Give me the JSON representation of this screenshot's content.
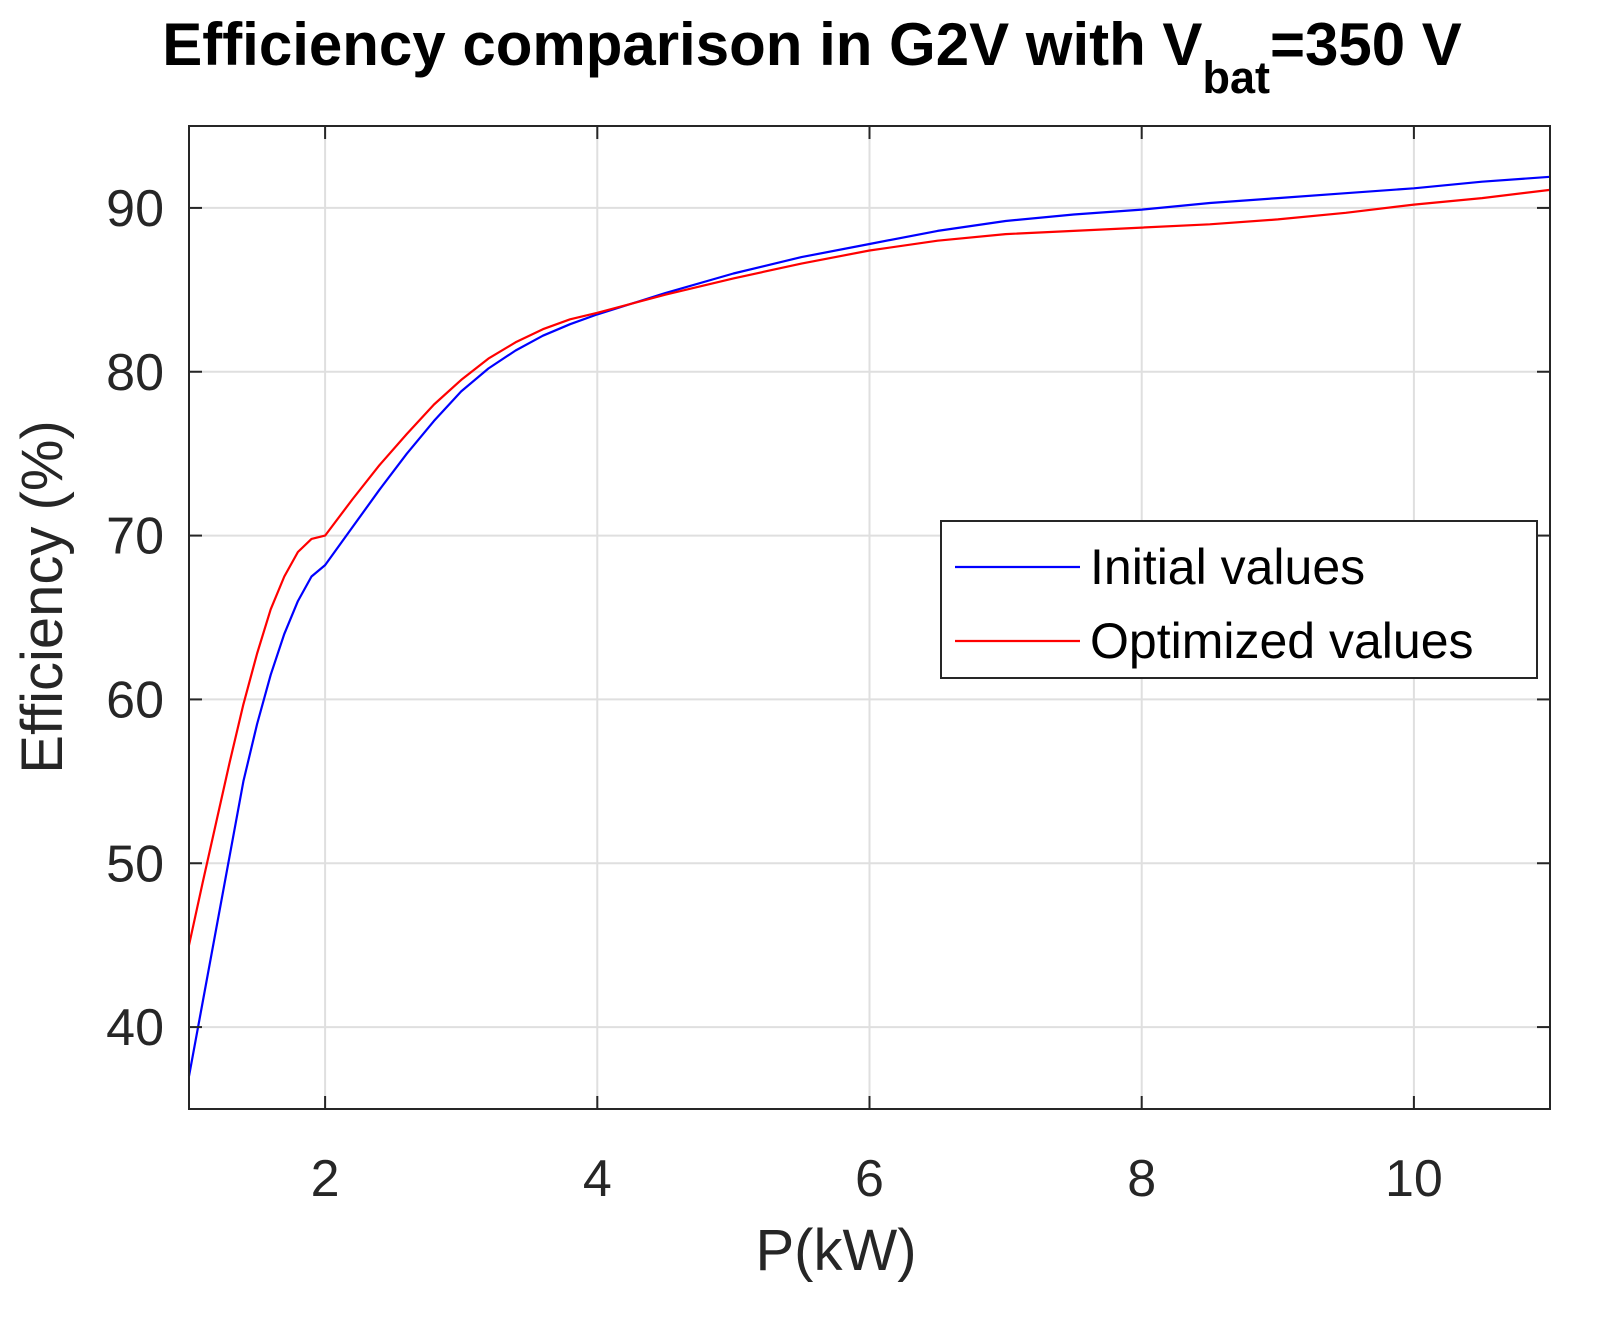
{
  "chart_data": {
    "type": "line",
    "title": {
      "main": "Efficiency comparison in G2V with V",
      "subscript": "bat",
      "suffix": "=350 V"
    },
    "xlabel": "P(kW)",
    "ylabel": "Efficiency (%)",
    "xlim": [
      1,
      11
    ],
    "ylim": [
      35,
      95
    ],
    "xticks": [
      2,
      4,
      6,
      8,
      10
    ],
    "yticks": [
      40,
      50,
      60,
      70,
      80,
      90
    ],
    "grid": true,
    "legend_position": "right",
    "series": [
      {
        "name": "Initial values",
        "color": "#0000ff",
        "x": [
          1.0,
          1.1,
          1.2,
          1.3,
          1.4,
          1.5,
          1.6,
          1.7,
          1.8,
          1.9,
          2.0,
          2.2,
          2.4,
          2.6,
          2.8,
          3.0,
          3.2,
          3.4,
          3.6,
          3.8,
          4.0,
          4.5,
          5.0,
          5.5,
          6.0,
          6.5,
          7.0,
          7.5,
          8.0,
          8.5,
          9.0,
          9.5,
          10.0,
          10.5,
          11.0
        ],
        "y": [
          37.0,
          41.5,
          46.0,
          50.5,
          55.0,
          58.5,
          61.5,
          64.0,
          66.0,
          67.5,
          68.2,
          70.5,
          72.8,
          75.0,
          77.0,
          78.8,
          80.2,
          81.3,
          82.2,
          82.9,
          83.5,
          84.8,
          86.0,
          87.0,
          87.8,
          88.6,
          89.2,
          89.6,
          89.9,
          90.3,
          90.6,
          90.9,
          91.2,
          91.6,
          91.9
        ]
      },
      {
        "name": "Optimized values",
        "color": "#ff0000",
        "x": [
          1.0,
          1.1,
          1.2,
          1.3,
          1.4,
          1.5,
          1.6,
          1.7,
          1.8,
          1.9,
          2.0,
          2.2,
          2.4,
          2.6,
          2.8,
          3.0,
          3.2,
          3.4,
          3.6,
          3.8,
          4.0,
          4.5,
          5.0,
          5.5,
          6.0,
          6.5,
          7.0,
          7.5,
          8.0,
          8.5,
          9.0,
          9.5,
          10.0,
          10.5,
          11.0
        ],
        "y": [
          45.0,
          48.8,
          52.5,
          56.2,
          59.7,
          62.8,
          65.5,
          67.5,
          69.0,
          69.8,
          70.0,
          72.2,
          74.3,
          76.2,
          78.0,
          79.5,
          80.8,
          81.8,
          82.6,
          83.2,
          83.6,
          84.7,
          85.7,
          86.6,
          87.4,
          88.0,
          88.4,
          88.6,
          88.8,
          89.0,
          89.3,
          89.7,
          90.2,
          90.6,
          91.1
        ]
      }
    ]
  }
}
